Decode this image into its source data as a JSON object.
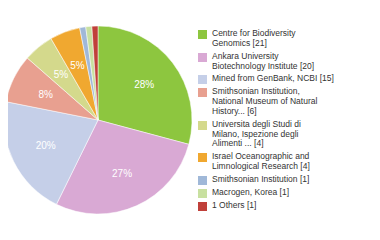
{
  "chart_data": {
    "type": "pie",
    "categories": [
      "Centre for Biodiversity\nGenomics [21]",
      "Ankara University\nBiotechnology Institute [20]",
      "Mined from GenBank, NCBI [15]",
      "Smithsonian Institution,\nNational Museum of Natural\nHistory... [6]",
      "Universita degli Studi di\nMilano, Ispezione degli\nAlimenti ... [4]",
      "Israel Oceanographic and\nLimnological Research [4]",
      "Smithsonian Institution [1]",
      "Macrogen, Korea [1]",
      "1 Others [1]"
    ],
    "values": [
      28,
      27,
      20,
      8,
      5,
      5,
      1,
      1,
      1
    ],
    "value_labels": [
      "28%",
      "27%",
      "20%",
      "8%",
      "5%",
      "5%",
      null,
      null,
      null
    ],
    "colors": [
      "#8dc63f",
      "#d9a9d4",
      "#c5cfe8",
      "#e8a090",
      "#d4d98c",
      "#f0a830",
      "#a0b8d8",
      "#c8e0a0",
      "#c0403a"
    ],
    "data_labels": true,
    "legend": "right"
  }
}
